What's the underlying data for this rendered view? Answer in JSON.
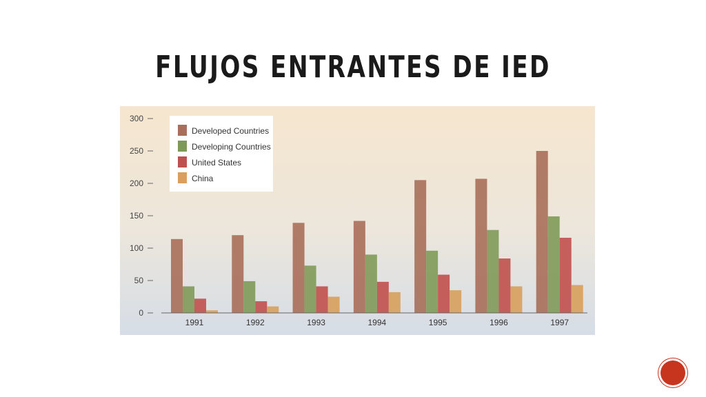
{
  "slide": {
    "title": "FLUJOS ENTRANTES DE IED"
  },
  "colors": {
    "accent": "#c8351f",
    "series": [
      "#a86f5a",
      "#7f9a58",
      "#c0504d",
      "#d8a05c"
    ]
  },
  "chart_data": {
    "type": "bar",
    "title": "",
    "xlabel": "",
    "ylabel": "",
    "categories": [
      "1991",
      "1992",
      "1993",
      "1994",
      "1995",
      "1996",
      "1997"
    ],
    "ylim": [
      0,
      300
    ],
    "yticks": [
      "0",
      "50",
      "100",
      "150",
      "200",
      "250",
      "300"
    ],
    "grid": false,
    "legend_position": "top-left",
    "series": [
      {
        "name": "Developed Countries",
        "values": [
          114,
          120,
          139,
          142,
          205,
          207,
          250
        ]
      },
      {
        "name": "Developing Countries",
        "values": [
          41,
          49,
          73,
          90,
          96,
          128,
          149
        ]
      },
      {
        "name": "United States",
        "values": [
          22,
          18,
          41,
          48,
          59,
          84,
          116
        ]
      },
      {
        "name": "China",
        "values": [
          4,
          10,
          25,
          32,
          35,
          41,
          43
        ]
      }
    ]
  }
}
